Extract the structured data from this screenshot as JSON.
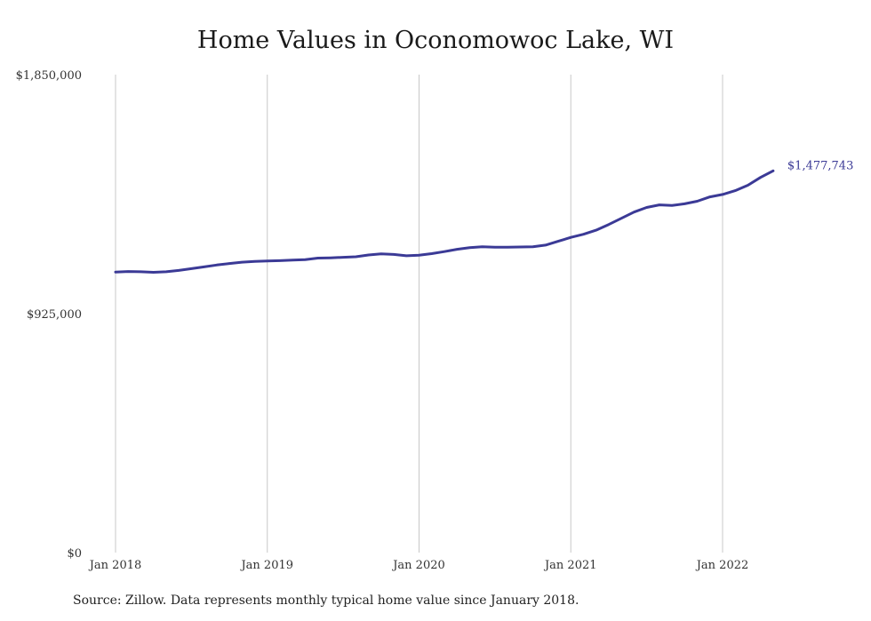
{
  "chart_data": {
    "type": "line",
    "title": "Home Values in Oconomowoc Lake, WI",
    "xlabel": "",
    "ylabel": "",
    "ylim": [
      0,
      1850000
    ],
    "xlim": [
      "2018-01",
      "2022-05"
    ],
    "grid": {
      "vertical": true,
      "horizontal": false
    },
    "y_ticks": [
      {
        "value": 0,
        "label": "$0"
      },
      {
        "value": 925000,
        "label": "$925,000"
      },
      {
        "value": 1850000,
        "label": "$1,850,000"
      }
    ],
    "x_ticks": [
      {
        "value": "2018-01",
        "label": "Jan 2018"
      },
      {
        "value": "2019-01",
        "label": "Jan 2019"
      },
      {
        "value": "2020-01",
        "label": "Jan 2020"
      },
      {
        "value": "2021-01",
        "label": "Jan 2021"
      },
      {
        "value": "2022-01",
        "label": "Jan 2022"
      }
    ],
    "line_color": "#3b3a96",
    "end_label": "$1,477,743",
    "x": [
      "2018-01",
      "2018-02",
      "2018-03",
      "2018-04",
      "2018-05",
      "2018-06",
      "2018-07",
      "2018-08",
      "2018-09",
      "2018-10",
      "2018-11",
      "2018-12",
      "2019-01",
      "2019-02",
      "2019-03",
      "2019-04",
      "2019-05",
      "2019-06",
      "2019-07",
      "2019-08",
      "2019-09",
      "2019-10",
      "2019-11",
      "2019-12",
      "2020-01",
      "2020-02",
      "2020-03",
      "2020-04",
      "2020-05",
      "2020-06",
      "2020-07",
      "2020-08",
      "2020-09",
      "2020-10",
      "2020-11",
      "2020-12",
      "2021-01",
      "2021-02",
      "2021-03",
      "2021-04",
      "2021-05",
      "2021-06",
      "2021-07",
      "2021-08",
      "2021-09",
      "2021-10",
      "2021-11",
      "2021-12",
      "2022-01",
      "2022-02",
      "2022-03",
      "2022-04",
      "2022-05"
    ],
    "values": [
      1086000,
      1088000,
      1087000,
      1085000,
      1087000,
      1092000,
      1099000,
      1106000,
      1113000,
      1119000,
      1124000,
      1127000,
      1129000,
      1130000,
      1132000,
      1134000,
      1140000,
      1141000,
      1143000,
      1145000,
      1152000,
      1156000,
      1154000,
      1149000,
      1151000,
      1157000,
      1165000,
      1174000,
      1180000,
      1184000,
      1182000,
      1182000,
      1183000,
      1184000,
      1190000,
      1205000,
      1220000,
      1232000,
      1248000,
      1270000,
      1294000,
      1318000,
      1336000,
      1346000,
      1344000,
      1350000,
      1360000,
      1377000,
      1386000,
      1401000,
      1422000,
      1452000,
      1477743
    ]
  },
  "source_note": "Source: Zillow. Data represents monthly typical home value since January 2018."
}
